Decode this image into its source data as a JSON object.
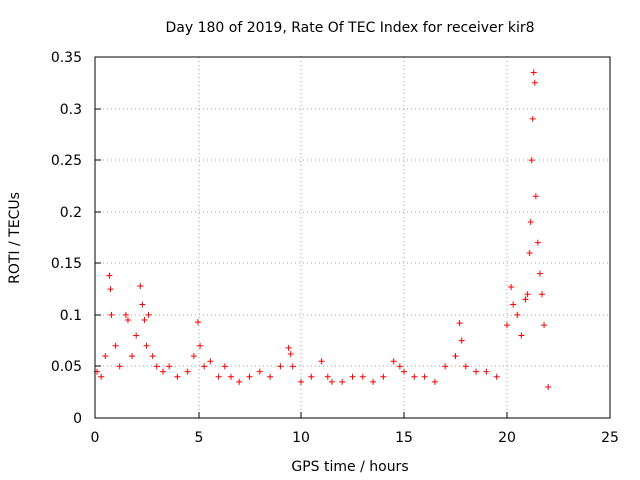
{
  "chart_data": {
    "type": "scatter",
    "title": "Day 180 of 2019, Rate Of TEC Index for receiver kir8",
    "xlabel": "GPS time / hours",
    "ylabel": "ROTI / TECUs",
    "xlim": [
      0,
      25
    ],
    "ylim": [
      0,
      0.35
    ],
    "xticks": [
      0,
      5,
      10,
      15,
      20,
      25
    ],
    "xtick_labels": [
      "0",
      "5",
      "10",
      "15",
      "20",
      "25"
    ],
    "yticks": [
      0,
      0.05,
      0.1,
      0.15,
      0.2,
      0.25,
      0.3,
      0.35
    ],
    "ytick_labels": [
      "0",
      "0.05",
      "0.1",
      "0.15",
      "0.2",
      "0.25",
      "0.3",
      "0.35"
    ],
    "grid": true,
    "marker": "+",
    "color": "#ff0000",
    "series": [
      {
        "name": "ROTI",
        "x": [
          0.1,
          0.3,
          0.5,
          0.7,
          0.75,
          0.8,
          1.0,
          1.2,
          1.5,
          1.6,
          1.8,
          2.0,
          2.2,
          2.3,
          2.4,
          2.5,
          2.6,
          2.8,
          3.0,
          3.3,
          3.6,
          4.0,
          4.5,
          4.8,
          5.0,
          5.1,
          5.3,
          5.6,
          6.0,
          6.3,
          6.6,
          7.0,
          7.5,
          8.0,
          8.5,
          9.0,
          9.4,
          9.5,
          9.6,
          10.0,
          10.5,
          11.0,
          11.3,
          11.5,
          12.0,
          12.5,
          13.0,
          13.5,
          14.0,
          14.5,
          14.8,
          15.0,
          15.5,
          16.0,
          16.5,
          17.0,
          17.5,
          17.7,
          17.8,
          18.0,
          18.5,
          19.0,
          19.5,
          20.0,
          20.2,
          20.3,
          20.5,
          20.7,
          20.9,
          21.0,
          21.1,
          21.15,
          21.2,
          21.25,
          21.3,
          21.35,
          21.4,
          21.5,
          21.6,
          21.7,
          21.8,
          22.0
        ],
        "y": [
          0.045,
          0.04,
          0.06,
          0.138,
          0.125,
          0.1,
          0.07,
          0.05,
          0.1,
          0.095,
          0.06,
          0.08,
          0.128,
          0.11,
          0.095,
          0.07,
          0.1,
          0.06,
          0.05,
          0.045,
          0.05,
          0.04,
          0.045,
          0.06,
          0.093,
          0.07,
          0.05,
          0.055,
          0.04,
          0.05,
          0.04,
          0.035,
          0.04,
          0.045,
          0.04,
          0.05,
          0.068,
          0.062,
          0.05,
          0.035,
          0.04,
          0.055,
          0.04,
          0.035,
          0.035,
          0.04,
          0.04,
          0.035,
          0.04,
          0.055,
          0.05,
          0.045,
          0.04,
          0.04,
          0.035,
          0.05,
          0.06,
          0.092,
          0.075,
          0.05,
          0.045,
          0.045,
          0.04,
          0.09,
          0.127,
          0.11,
          0.1,
          0.08,
          0.115,
          0.12,
          0.16,
          0.19,
          0.25,
          0.29,
          0.335,
          0.325,
          0.215,
          0.17,
          0.14,
          0.12,
          0.09,
          0.03
        ]
      }
    ]
  }
}
